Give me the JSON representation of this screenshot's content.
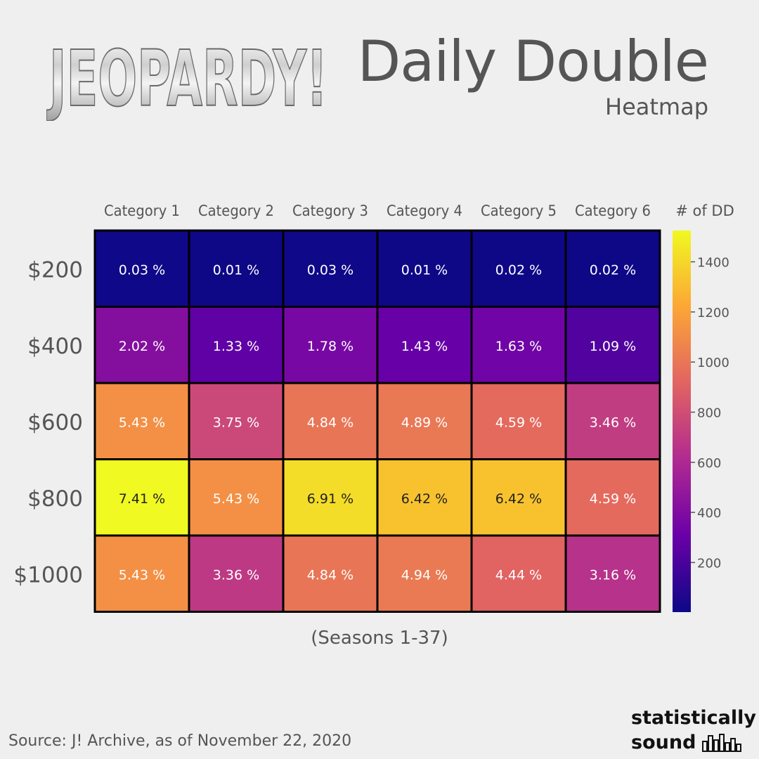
{
  "header": {
    "logo_text": "JEOPARDY!",
    "title": "Daily Double",
    "subtitle": "Heatmap"
  },
  "footnote": "(Seasons 1-37)",
  "source": "Source: J! Archive, as of November 22, 2020",
  "brand": {
    "line1": "statistically",
    "line2": "sound"
  },
  "colors": {
    "background": "#efefef",
    "text": "#555555",
    "cell_border": "#000000",
    "colormap": [
      "#0d0887",
      "#6a00a8",
      "#b12a90",
      "#e16462",
      "#fca636",
      "#f0f921"
    ]
  },
  "chart_data": {
    "type": "heatmap",
    "columns": [
      "Category 1",
      "Category 2",
      "Category 3",
      "Category 4",
      "Category 5",
      "Category 6"
    ],
    "rows": [
      "$200",
      "$400",
      "$600",
      "$800",
      "$1000"
    ],
    "values": [
      [
        0.03,
        0.01,
        0.03,
        0.01,
        0.02,
        0.02
      ],
      [
        2.02,
        1.33,
        1.78,
        1.43,
        1.63,
        1.09
      ],
      [
        5.43,
        3.75,
        4.84,
        4.89,
        4.59,
        3.46
      ],
      [
        7.41,
        5.43,
        6.91,
        6.42,
        6.42,
        4.59
      ],
      [
        5.43,
        3.36,
        4.84,
        4.94,
        4.44,
        3.16
      ]
    ],
    "cell_labels": [
      [
        "0.03 %",
        "0.01 %",
        "0.03 %",
        "0.01 %",
        "0.02 %",
        "0.02 %"
      ],
      [
        "2.02 %",
        "1.33 %",
        "1.78 %",
        "1.43 %",
        "1.63 %",
        "1.09 %"
      ],
      [
        "5.43 %",
        "3.75 %",
        "4.84 %",
        "4.89 %",
        "4.59 %",
        "3.46 %"
      ],
      [
        "7.41 %",
        "5.43 %",
        "6.91 %",
        "6.42 %",
        "6.42 %",
        "4.59 %"
      ],
      [
        "5.43 %",
        "3.36 %",
        "4.84 %",
        "4.94 %",
        "4.44 %",
        "3.16 %"
      ]
    ],
    "colorbar": {
      "label": "# of DD",
      "ticks": [
        200,
        400,
        600,
        800,
        1000,
        1200,
        1400
      ],
      "range": [
        2,
        1525
      ]
    },
    "color_scale": "plasma",
    "cell_text_dark_threshold": 6.0
  }
}
